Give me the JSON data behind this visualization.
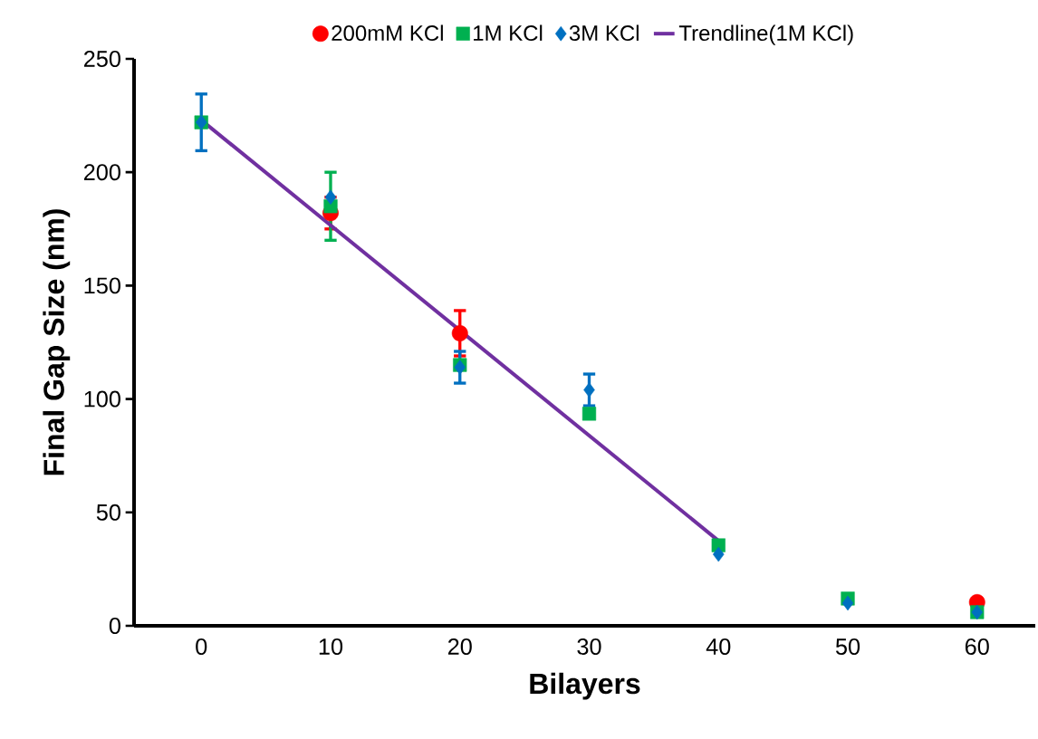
{
  "chart_data": {
    "type": "scatter",
    "xlabel": "Bilayers",
    "ylabel": "Final Gap Size (nm)",
    "x": [
      0,
      10,
      20,
      30,
      40,
      50,
      60
    ],
    "xlim": [
      -5.2,
      64.5
    ],
    "ylim": [
      0,
      250
    ],
    "xticks": [
      0,
      10,
      20,
      30,
      40,
      50,
      60
    ],
    "yticks": [
      0,
      50,
      100,
      150,
      200,
      250
    ],
    "legend": "top",
    "series": [
      {
        "name": "200mM KCl",
        "color": "#ff0000",
        "marker": "circle",
        "values": [
          null,
          182,
          129,
          null,
          null,
          null,
          10.4
        ],
        "errors": [
          null,
          7,
          10,
          null,
          null,
          null,
          null
        ]
      },
      {
        "name": "1M KCl",
        "color": "#00b050",
        "marker": "square",
        "values": [
          222,
          185,
          115,
          93.5,
          35.5,
          12,
          6
        ],
        "errors": [
          null,
          15,
          null,
          null,
          null,
          null,
          null
        ]
      },
      {
        "name": "3M KCl",
        "color": "#0070c0",
        "marker": "diamond",
        "values": [
          222,
          189,
          114,
          104,
          31.5,
          10,
          6
        ],
        "errors": [
          12.5,
          null,
          7,
          7,
          null,
          null,
          null
        ]
      },
      {
        "name": "Trendline(1M KCl)",
        "type": "line",
        "color": "#7030a0",
        "line_style": "solid",
        "x": [
          0,
          40
        ],
        "values": [
          223,
          37.5
        ]
      }
    ]
  }
}
